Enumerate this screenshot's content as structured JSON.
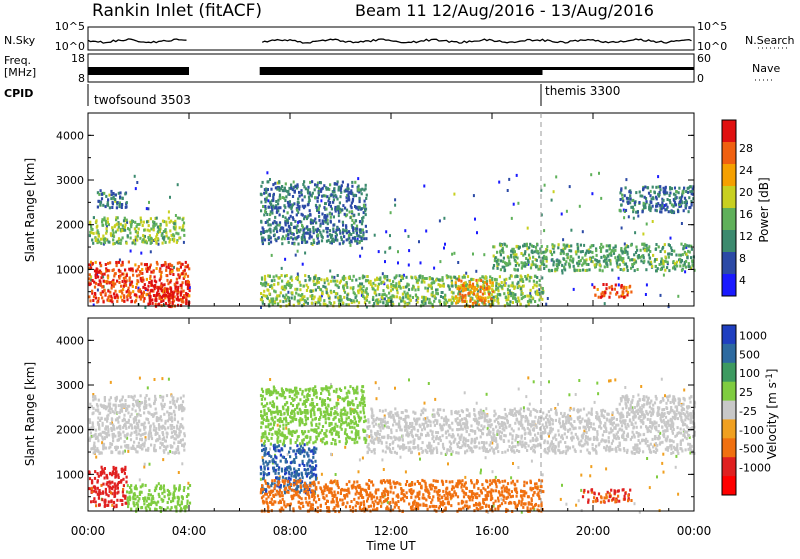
{
  "header": {
    "station": "Rankin Inlet (fitACF)",
    "beam": "Beam 11  12/Aug/2016 - 13/Aug/2016"
  },
  "strip_labels": {
    "nsky": "N.Sky",
    "nsky_ticks": [
      "10^5",
      "10^0"
    ],
    "nsearch": "N.Search",
    "nsearch_ticks": [
      "10^5",
      "10^0"
    ],
    "freq_top": "Freq.",
    "freq_bottom": "[MHz]",
    "freq_ticks": [
      "18",
      "8"
    ],
    "nave": "Nave",
    "nave_ticks": [
      "60",
      "0"
    ],
    "cpid": "CPID"
  },
  "cpid_segments": [
    {
      "label": "twofsound 3503",
      "start_hour": 0.0
    },
    {
      "label": "themis 3300",
      "start_hour": 18.0
    }
  ],
  "x_axis": {
    "label": "Time UT",
    "ticks": [
      "00:00",
      "04:00",
      "08:00",
      "12:00",
      "16:00",
      "20:00",
      "00:00"
    ]
  },
  "colors": {
    "power": [
      "#1a1aff",
      "#2c4aa6",
      "#3c8a6e",
      "#5fb05a",
      "#c8d020",
      "#f5a000",
      "#f06010",
      "#e01010"
    ],
    "velocity": [
      "#1f3fc0",
      "#2d6aa0",
      "#3d9a60",
      "#7fcc40",
      "#c8c8c8",
      "#f0a020",
      "#f07010",
      "#e02020",
      "#ff0000"
    ],
    "gray": "#c0c0c0"
  },
  "chart_data": [
    {
      "type": "heatmap",
      "name_hint": "power",
      "x_range_hours": [
        0,
        24
      ],
      "ylabel": "Slant Range [km]",
      "y_ticks": [
        "1000",
        "2000",
        "3000",
        "4000"
      ],
      "ylim": [
        180,
        4500
      ],
      "colorbar_label": "Power [dB]",
      "colorbar_ticks": [
        "4",
        "8",
        "12",
        "16",
        "20",
        "24",
        "28"
      ],
      "colorbar_range": [
        0,
        30
      ],
      "data_gap_hours": [
        [
          4.0,
          6.8
        ]
      ],
      "operating_mode_change_hour": 18.0,
      "regions": [
        {
          "t": [
            0.0,
            4.0
          ],
          "r": [
            300,
            1200
          ],
          "value": 26
        },
        {
          "t": [
            2.3,
            4.0
          ],
          "r": [
            200,
            700
          ],
          "value": 28
        },
        {
          "t": [
            0.0,
            3.8
          ],
          "r": [
            1600,
            2200
          ],
          "value": 14
        },
        {
          "t": [
            0.3,
            1.5
          ],
          "r": [
            2400,
            2800
          ],
          "value": 8
        },
        {
          "t": [
            6.8,
            11.0
          ],
          "r": [
            1600,
            3000
          ],
          "value": 8
        },
        {
          "t": [
            6.8,
            18.0
          ],
          "r": [
            200,
            900
          ],
          "value": 14
        },
        {
          "t": [
            14.5,
            16.0
          ],
          "r": [
            200,
            800
          ],
          "value": 22
        },
        {
          "t": [
            16.0,
            24.0
          ],
          "r": [
            1000,
            1600
          ],
          "value": 12
        },
        {
          "t": [
            20.0,
            21.5
          ],
          "r": [
            400,
            700
          ],
          "value": 26
        },
        {
          "t": [
            21.0,
            24.0
          ],
          "r": [
            2300,
            2900
          ],
          "value": 8
        }
      ]
    },
    {
      "type": "heatmap",
      "name_hint": "velocity",
      "x_range_hours": [
        0,
        24
      ],
      "ylabel": "Slant Range [km]",
      "y_ticks": [
        "1000",
        "2000",
        "3000",
        "4000"
      ],
      "ylim": [
        180,
        4500
      ],
      "colorbar_label": "Velocity [m s",
      "colorbar_label_sup": "-1",
      "colorbar_label_end": "]",
      "colorbar_ticks": [
        "1000",
        "500",
        "100",
        "25",
        "-25",
        "-100",
        "-500",
        "-1000"
      ],
      "data_gap_hours": [
        [
          4.0,
          6.8
        ]
      ],
      "operating_mode_change_hour": 18.0,
      "regions": [
        {
          "t": [
            0.0,
            3.8
          ],
          "r": [
            1500,
            2800
          ],
          "value": 0
        },
        {
          "t": [
            0.0,
            1.5
          ],
          "r": [
            300,
            1200
          ],
          "value": -700
        },
        {
          "t": [
            1.5,
            4.0
          ],
          "r": [
            200,
            800
          ],
          "value": 60
        },
        {
          "t": [
            6.8,
            9.0
          ],
          "r": [
            600,
            1700
          ],
          "value": 900
        },
        {
          "t": [
            6.8,
            11.0
          ],
          "r": [
            1700,
            3000
          ],
          "value": 50
        },
        {
          "t": [
            6.8,
            18.0
          ],
          "r": [
            200,
            900
          ],
          "value": -200
        },
        {
          "t": [
            11.0,
            24.0
          ],
          "r": [
            1500,
            2500
          ],
          "value": 0
        },
        {
          "t": [
            19.5,
            21.5
          ],
          "r": [
            400,
            700
          ],
          "value": -500
        },
        {
          "t": [
            21.0,
            24.0
          ],
          "r": [
            2300,
            2800
          ],
          "value": 0
        }
      ]
    }
  ]
}
